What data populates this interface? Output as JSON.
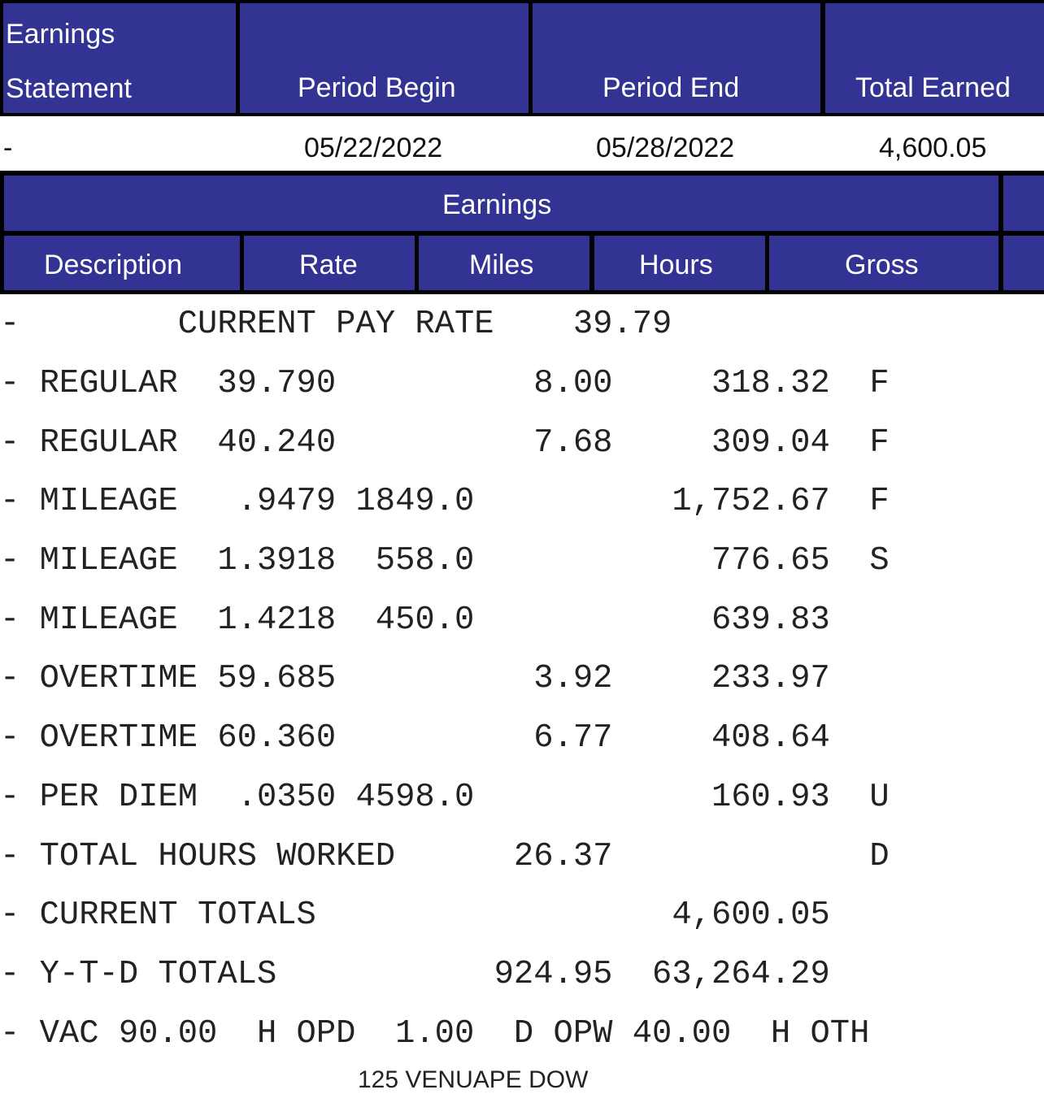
{
  "summary_header": {
    "earnings_statement": "Earnings Statement",
    "period_begin": "Period Begin",
    "period_end": "Period End",
    "total_earned": "Total Earned"
  },
  "summary_values": {
    "statement": "-",
    "period_begin": "05/22/2022",
    "period_end": "05/28/2022",
    "total_earned": "4,600.05"
  },
  "earnings_section": {
    "title": "Earnings",
    "columns": [
      "Description",
      "Rate",
      "Miles",
      "Hours",
      "Gross"
    ]
  },
  "earnings_lines": [
    "-        CURRENT PAY RATE    39.79",
    "- REGULAR  39.790          8.00     318.32  F",
    "- REGULAR  40.240          7.68     309.04  F",
    "- MILEAGE   .9479 1849.0          1,752.67  F",
    "- MILEAGE  1.3918  558.0            776.65  S",
    "- MILEAGE  1.4218  450.0            639.83",
    "- OVERTIME 59.685          3.92     233.97",
    "- OVERTIME 60.360          6.77     408.64",
    "- PER DIEM  .0350 4598.0            160.93  U",
    "- TOTAL HOURS WORKED      26.37             D",
    "- CURRENT TOTALS                  4,600.05",
    "- Y-T-D TOTALS           924.95  63,264.29",
    "- VAC 90.00  H OPD  1.00  D OPW 40.00  H OTH"
  ],
  "cut_off_text": "125 VENUAPE DOW"
}
